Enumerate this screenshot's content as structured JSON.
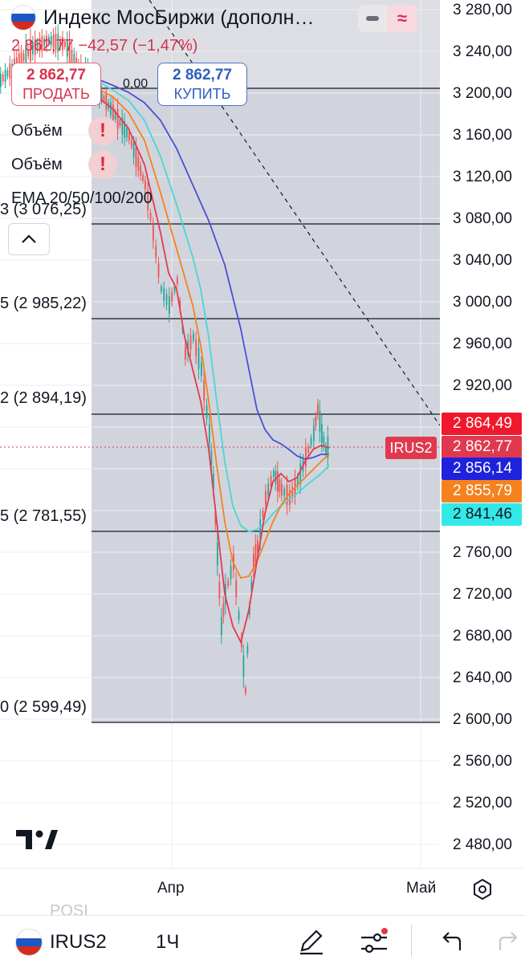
{
  "header": {
    "title": "Индекс МосБиржи (дополн…",
    "price_line": "2 862,77  −42,57 (−1,47%)",
    "sell": {
      "price": "2 862,77",
      "label": "ПРОДАТЬ"
    },
    "buy": {
      "price": "2 862,77",
      "label": "КУПИТЬ"
    },
    "spread": "0,00"
  },
  "indicators": [
    {
      "name": "Объём",
      "warning": "!"
    },
    {
      "name": "Объём",
      "warning": "!"
    },
    {
      "name": "EMA 20/50/100/200"
    }
  ],
  "fib_levels": [
    "3 (3 076,25)",
    "5 (2 985,22)",
    "2 (2 894,19)",
    "5 (2 781,55)",
    "0 (2 599,49)"
  ],
  "y_axis_ticks": [
    "3 280,00",
    "3 240,00",
    "3 200,00",
    "3 160,00",
    "3 120,00",
    "3 080,00",
    "3 040,00",
    "3 000,00",
    "2 960,00",
    "2 920,00",
    "2 760,00",
    "2 720,00",
    "2 680,00",
    "2 640,00",
    "2 600,00",
    "2 560,00",
    "2 520,00",
    "2 480,00"
  ],
  "price_tags": [
    {
      "value": "2 864,49",
      "color": "#f0182c"
    },
    {
      "value": "2 862,77",
      "color": "#e0394f"
    },
    {
      "value": "2 856,14",
      "color": "#1e22dc"
    },
    {
      "value": "2 855,79",
      "color": "#f5821e"
    },
    {
      "value": "2 841,46",
      "color": "#33e8e8",
      "text_color": "#131722"
    }
  ],
  "symbol_tag": "IRUS2",
  "x_axis": [
    "Апр",
    "Май"
  ],
  "position_label": "POSI",
  "bottom_bar": {
    "symbol": "IRUS2",
    "interval": "1Ч",
    "icons": [
      "pencil-icon",
      "settings-sliders-icon",
      "undo-icon",
      "redo-icon"
    ]
  },
  "colors": {
    "up": "#26a69a",
    "down": "#ef5350",
    "ema20": "#e53950",
    "ema50": "#f5821e",
    "ema100": "#4ad6d6",
    "ema200": "#4b4fd6"
  },
  "chart_data": {
    "type": "candlestick",
    "ylim": [
      2460,
      3290
    ],
    "x_labels": [
      "Апр",
      "Май"
    ],
    "fib_levels": [
      3076.25,
      2985.22,
      2894.19,
      2781.55,
      2599.49
    ],
    "last_price": 2862.77
  }
}
